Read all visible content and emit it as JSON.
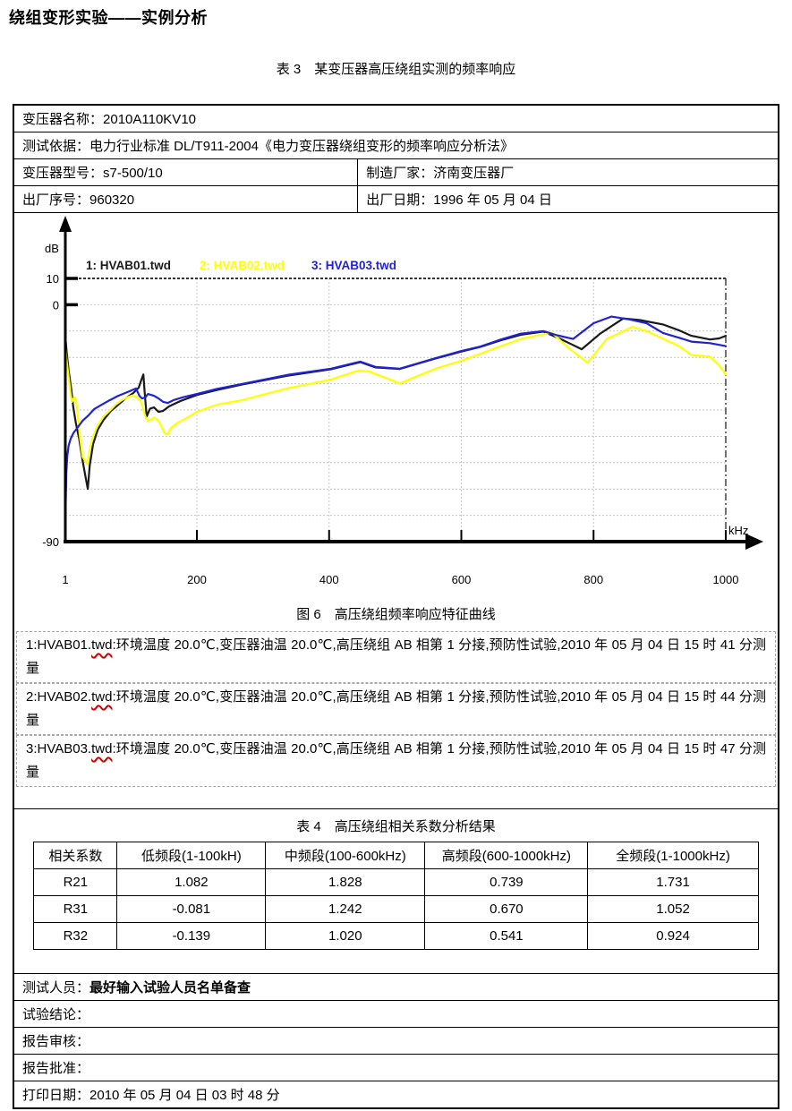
{
  "page": {
    "title": "绕组变形实验——实例分析",
    "table3_caption": "表 3　某变压器高压绕组实测的频率响应"
  },
  "info": {
    "name_label": "变压器名称：",
    "name_value": "2010A110KV10",
    "basis_label": "测试依据：",
    "basis_value": "电力行业标准 DL/T911-2004《电力变压器绕组变形的频率响应分析法》",
    "model_label": "变压器型号：",
    "model_value": "s7-500/10",
    "maker_label": "制造厂家：",
    "maker_value": "济南变压器厂",
    "serial_label": "出厂序号：",
    "serial_value": "960320",
    "date_label": "出厂日期：",
    "date_value": "1996 年 05 月 04 日"
  },
  "figure": {
    "caption": "图 6　高压绕组频率响应特征曲线"
  },
  "notes": [
    {
      "prefix": "1:HVAB01.",
      "wavy": "twd",
      "rest": ":环境温度 20.0℃,变压器油温 20.0℃,高压绕组 AB 相第 1 分接,预防性试验,2010 年 05 月 04 日 15 时 41 分测量"
    },
    {
      "prefix": "2:HVAB02.",
      "wavy": "twd",
      "rest": ":环境温度 20.0℃,变压器油温 20.0℃,高压绕组 AB 相第 1 分接,预防性试验,2010 年 05 月 04 日 15 时 44 分测量"
    },
    {
      "prefix": "3:HVAB03.",
      "wavy": "twd",
      "rest": ":环境温度 20.0℃,变压器油温 20.0℃,高压绕组 AB 相第 1 分接,预防性试验,2010 年 05 月 04 日 15 时 47 分测量"
    }
  ],
  "table4": {
    "caption": "表 4　高压绕组相关系数分析结果",
    "headers": [
      "相关系数",
      "低频段(1-100kH)",
      "中频段(100-600kHz)",
      "高频段(600-1000kHz)",
      "全频段(1-1000kHz)"
    ],
    "rows": [
      [
        "R21",
        "1.082",
        "1.828",
        "0.739",
        "1.731"
      ],
      [
        "R31",
        "-0.081",
        "1.242",
        "0.670",
        "1.052"
      ],
      [
        "R32",
        "-0.139",
        "1.020",
        "0.541",
        "0.924"
      ]
    ]
  },
  "footer": {
    "rows": [
      {
        "label": "测试人员：",
        "value": "最好输入试验人员名单备查"
      },
      {
        "label": "试验结论：",
        "value": ""
      },
      {
        "label": "报告审核：",
        "value": ""
      },
      {
        "label": "报告批准：",
        "value": ""
      },
      {
        "label": "打印日期：",
        "value": "2010 年 05 月 04 日 03 时 48 分"
      }
    ]
  },
  "chart_data": {
    "type": "line",
    "title": "高压绕组频率响应特征曲线",
    "y_unit": "dB",
    "x_unit": "kHz",
    "xlim": [
      1,
      1000
    ],
    "ylim": [
      -90,
      10
    ],
    "x_ticks": [
      1,
      200,
      400,
      600,
      800,
      1000
    ],
    "y_labeled_ticks": [
      10,
      0,
      -90
    ],
    "y_gridlines": [
      0,
      -10,
      -20,
      -30,
      -40,
      -50,
      -60,
      -70,
      -80
    ],
    "x_gridlines": [
      200,
      400,
      600,
      800
    ],
    "top_border_db": 10,
    "right_border_khz": 1000,
    "grid": true,
    "legend_position": "top-inside",
    "legend": [
      {
        "label": "1: HVAB01.twd",
        "color": "#1a1a1a"
      },
      {
        "label": "2: HVAB02.twd",
        "color": "#ffff00"
      },
      {
        "label": "3: HVAB03.twd",
        "color": "#2121d6"
      }
    ],
    "series": [
      {
        "name": "HVAB01",
        "color": "#1a1a1a",
        "points": [
          [
            1,
            -12
          ],
          [
            3,
            -18
          ],
          [
            6,
            -25
          ],
          [
            10,
            -32
          ],
          [
            13,
            -39
          ],
          [
            17,
            -45
          ],
          [
            22,
            -51
          ],
          [
            27,
            -59
          ],
          [
            32,
            -66
          ],
          [
            35,
            -70
          ],
          [
            38,
            -61
          ],
          [
            43,
            -53
          ],
          [
            50,
            -47.5
          ],
          [
            59,
            -43.7
          ],
          [
            70,
            -40.3
          ],
          [
            81,
            -38
          ],
          [
            92,
            -35.6
          ],
          [
            104,
            -33.5
          ],
          [
            112,
            -31.5
          ],
          [
            116,
            -28.5
          ],
          [
            119,
            -26.5
          ],
          [
            121,
            -33
          ],
          [
            124,
            -42.5
          ],
          [
            129,
            -39.5
          ],
          [
            135,
            -39
          ],
          [
            142,
            -40.7
          ],
          [
            149,
            -40.3
          ],
          [
            158,
            -38.6
          ],
          [
            175,
            -36.6
          ],
          [
            200,
            -34.3
          ],
          [
            230,
            -32.4
          ],
          [
            268,
            -30.3
          ],
          [
            336,
            -27
          ],
          [
            403,
            -24.5
          ],
          [
            447,
            -21.8
          ],
          [
            470,
            -23.8
          ],
          [
            507,
            -24.4
          ],
          [
            561,
            -20.4
          ],
          [
            600,
            -17.8
          ],
          [
            629,
            -16
          ],
          [
            660,
            -13.5
          ],
          [
            690,
            -11.4
          ],
          [
            724,
            -10.2
          ],
          [
            750,
            -13
          ],
          [
            782,
            -16.9
          ],
          [
            810,
            -11
          ],
          [
            845,
            -5.2
          ],
          [
            870,
            -5.8
          ],
          [
            905,
            -7.5
          ],
          [
            930,
            -9.8
          ],
          [
            948,
            -11.8
          ],
          [
            976,
            -13.2
          ],
          [
            990,
            -12.8
          ],
          [
            1000,
            -11.8
          ]
        ]
      },
      {
        "name": "HVAB02",
        "color": "#ffff00",
        "points": [
          [
            1,
            -15
          ],
          [
            2.5,
            -20
          ],
          [
            4.5,
            -24.5
          ],
          [
            7,
            -29.5
          ],
          [
            9,
            -33.9
          ],
          [
            11,
            -36.9
          ],
          [
            13.5,
            -35.6
          ],
          [
            16,
            -35.2
          ],
          [
            18,
            -38
          ],
          [
            23,
            -50
          ],
          [
            27,
            -57.7
          ],
          [
            31,
            -59.4
          ],
          [
            34,
            -60.5
          ],
          [
            38,
            -55
          ],
          [
            43,
            -50
          ],
          [
            50,
            -45.8
          ],
          [
            59,
            -42.4
          ],
          [
            68,
            -40.3
          ],
          [
            77,
            -38
          ],
          [
            86,
            -36.3
          ],
          [
            95,
            -35.2
          ],
          [
            102,
            -34.5
          ],
          [
            108,
            -34.8
          ],
          [
            115,
            -36.5
          ],
          [
            122,
            -42.4
          ],
          [
            126,
            -44.1
          ],
          [
            131,
            -43.7
          ],
          [
            136,
            -42.8
          ],
          [
            143,
            -44.5
          ],
          [
            151,
            -48.8
          ],
          [
            156,
            -49.2
          ],
          [
            160,
            -47.1
          ],
          [
            170,
            -45
          ],
          [
            185,
            -43
          ],
          [
            200,
            -40.7
          ],
          [
            230,
            -38
          ],
          [
            268,
            -36.3
          ],
          [
            336,
            -31.8
          ],
          [
            403,
            -28.4
          ],
          [
            444,
            -25
          ],
          [
            460,
            -25.3
          ],
          [
            507,
            -29.9
          ],
          [
            561,
            -24.3
          ],
          [
            600,
            -21.3
          ],
          [
            629,
            -18.6
          ],
          [
            660,
            -15.7
          ],
          [
            690,
            -13
          ],
          [
            737,
            -10.6
          ],
          [
            760,
            -16
          ],
          [
            791,
            -22
          ],
          [
            820,
            -13
          ],
          [
            859,
            -8.4
          ],
          [
            880,
            -10
          ],
          [
            905,
            -12.9
          ],
          [
            930,
            -15.8
          ],
          [
            948,
            -19.1
          ],
          [
            976,
            -19.7
          ],
          [
            990,
            -23
          ],
          [
            1000,
            -26.5
          ]
        ]
      },
      {
        "name": "HVAB03",
        "color": "#2121d6",
        "points": [
          [
            1,
            -90
          ],
          [
            1.5,
            -76
          ],
          [
            2.5,
            -64
          ],
          [
            4,
            -57.5
          ],
          [
            6,
            -53.5
          ],
          [
            9,
            -51
          ],
          [
            13,
            -48.8
          ],
          [
            20,
            -46.5
          ],
          [
            27,
            -44.1
          ],
          [
            36,
            -42
          ],
          [
            45,
            -39.6
          ],
          [
            56,
            -38
          ],
          [
            68,
            -36.3
          ],
          [
            81,
            -34.6
          ],
          [
            95,
            -33.2
          ],
          [
            104,
            -32.2
          ],
          [
            108,
            -31.8
          ],
          [
            113,
            -34.6
          ],
          [
            117,
            -35.6
          ],
          [
            122,
            -35.2
          ],
          [
            126,
            -33.9
          ],
          [
            135,
            -34.6
          ],
          [
            142,
            -35.6
          ],
          [
            149,
            -36.9
          ],
          [
            156,
            -37.3
          ],
          [
            165,
            -36.2
          ],
          [
            180,
            -35.1
          ],
          [
            200,
            -33.9
          ],
          [
            230,
            -32
          ],
          [
            268,
            -30.1
          ],
          [
            336,
            -26.7
          ],
          [
            403,
            -24.3
          ],
          [
            447,
            -21.6
          ],
          [
            470,
            -23.6
          ],
          [
            507,
            -24.3
          ],
          [
            561,
            -20.3
          ],
          [
            600,
            -17.6
          ],
          [
            629,
            -15.9
          ],
          [
            660,
            -13.2
          ],
          [
            690,
            -11
          ],
          [
            724,
            -10
          ],
          [
            745,
            -11.6
          ],
          [
            769,
            -13
          ],
          [
            800,
            -7
          ],
          [
            827,
            -4.5
          ],
          [
            855,
            -5.6
          ],
          [
            880,
            -7
          ],
          [
            905,
            -10.7
          ],
          [
            930,
            -12.6
          ],
          [
            948,
            -14
          ],
          [
            976,
            -14.6
          ],
          [
            1000,
            -15.7
          ]
        ]
      }
    ]
  }
}
